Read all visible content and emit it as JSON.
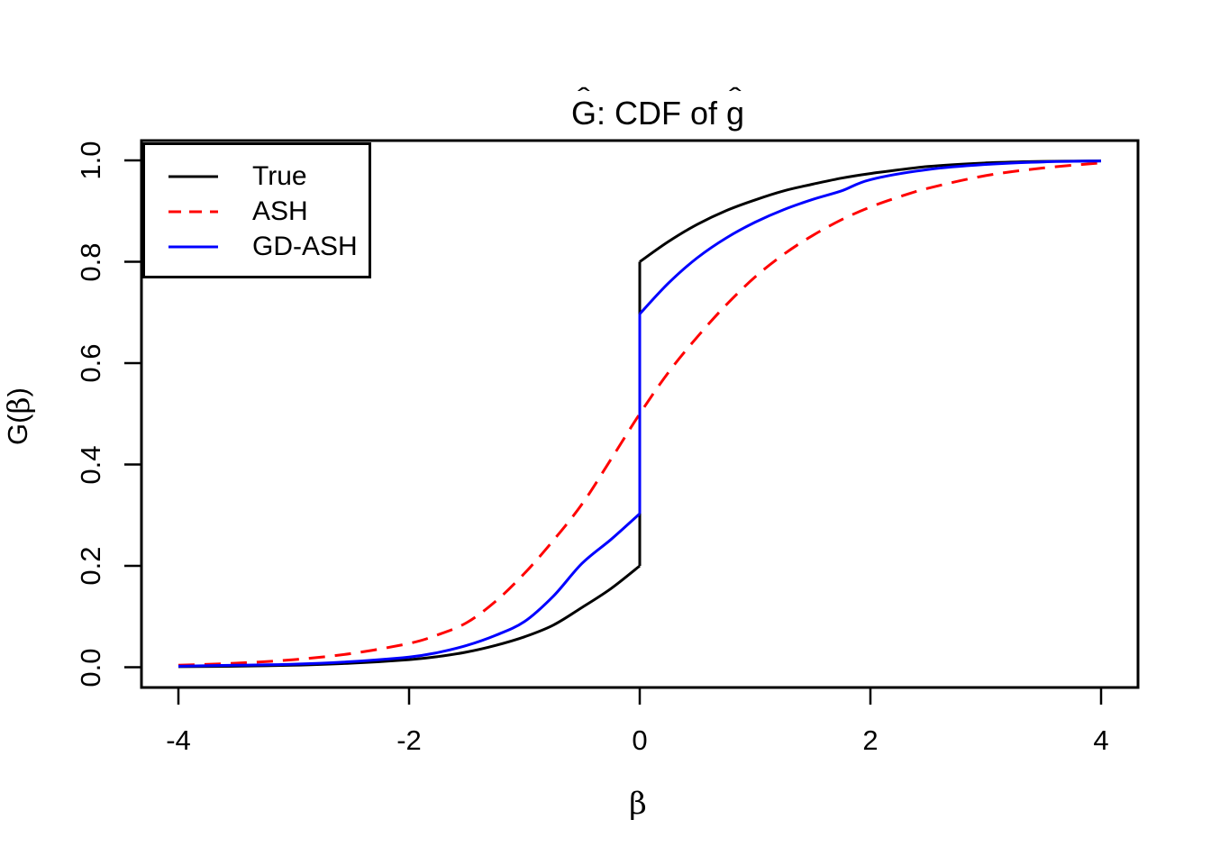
{
  "figure": {
    "title": {
      "text": "Ĝ: CDF of ĝ",
      "hat": "ˆ",
      "g_upper": "G",
      "mid": ": CDF of ",
      "g_lower": "g"
    },
    "x_axis": {
      "label": "β",
      "tick_labels": [
        "-4",
        "-2",
        "0",
        "2",
        "4"
      ],
      "tick_values": [
        -4,
        -2,
        0,
        2,
        4
      ]
    },
    "y_axis": {
      "label": "Ĝ(β)",
      "label_parts": {
        "hat": "ˆ",
        "g": "G",
        "open": "(",
        "beta": "β",
        "close": ")"
      },
      "tick_labels": [
        "0.0",
        "0.2",
        "0.4",
        "0.6",
        "0.8",
        "1.0"
      ],
      "tick_values": [
        0,
        0.2,
        0.4,
        0.6,
        0.8,
        1.0
      ]
    },
    "legend": {
      "entries": [
        {
          "label": "True",
          "color": "#000000",
          "linetype": "solid"
        },
        {
          "label": "ASH",
          "color": "#FF0000",
          "linetype": "dashed"
        },
        {
          "label": "GD-ASH",
          "color": "#0000FF",
          "linetype": "solid"
        }
      ]
    }
  },
  "chart_data": {
    "type": "line",
    "title": "Ĝ: CDF of ĝ",
    "xlabel": "β",
    "ylabel": "Ĝ(β)",
    "xlim": [
      -4,
      4
    ],
    "ylim": [
      0,
      1
    ],
    "grid": false,
    "legend_position": "topleft",
    "series": [
      {
        "name": "True",
        "color": "#000000",
        "linetype": "solid",
        "jump_at_zero": [
          0.2,
          0.8
        ],
        "x": [
          -4,
          -3.5,
          -3,
          -2.5,
          -2,
          -1.75,
          -1.5,
          -1.25,
          -1,
          -0.75,
          -0.5,
          -0.25,
          0,
          0,
          0.25,
          0.5,
          0.75,
          1,
          1.25,
          1.5,
          1.75,
          2,
          2.5,
          3,
          3.5,
          4
        ],
        "y": [
          0.001,
          0.002,
          0.004,
          0.008,
          0.015,
          0.021,
          0.03,
          0.043,
          0.06,
          0.083,
          0.118,
          0.155,
          0.2,
          0.8,
          0.84,
          0.874,
          0.901,
          0.922,
          0.94,
          0.953,
          0.965,
          0.974,
          0.988,
          0.995,
          0.998,
          0.999
        ]
      },
      {
        "name": "ASH",
        "color": "#FF0000",
        "linetype": "dashed",
        "jump_at_zero": null,
        "x": [
          -4,
          -3.5,
          -3,
          -2.5,
          -2,
          -1.75,
          -1.5,
          -1.25,
          -1,
          -0.75,
          -0.5,
          -0.25,
          0,
          0.25,
          0.5,
          0.75,
          1,
          1.25,
          1.5,
          1.75,
          2,
          2.25,
          2.5,
          3,
          3.5,
          4
        ],
        "y": [
          0.004,
          0.008,
          0.015,
          0.027,
          0.047,
          0.064,
          0.088,
          0.13,
          0.185,
          0.25,
          0.322,
          0.41,
          0.5,
          0.582,
          0.652,
          0.715,
          0.77,
          0.815,
          0.852,
          0.883,
          0.908,
          0.928,
          0.945,
          0.97,
          0.985,
          0.995
        ]
      },
      {
        "name": "GD-ASH",
        "color": "#0000FF",
        "linetype": "solid",
        "jump_at_zero": [
          0.303,
          0.697
        ],
        "x": [
          -4,
          -3.5,
          -3,
          -2.5,
          -2,
          -1.75,
          -1.5,
          -1.25,
          -1,
          -0.75,
          -0.5,
          -0.25,
          0,
          0,
          0.25,
          0.5,
          0.75,
          1,
          1.25,
          1.5,
          1.75,
          2,
          2.5,
          3,
          3.5,
          4
        ],
        "y": [
          0.002,
          0.004,
          0.006,
          0.011,
          0.02,
          0.029,
          0.043,
          0.063,
          0.09,
          0.14,
          0.205,
          0.252,
          0.303,
          0.697,
          0.758,
          0.808,
          0.847,
          0.878,
          0.903,
          0.923,
          0.94,
          0.962,
          0.982,
          0.992,
          0.997,
          0.999
        ]
      }
    ]
  }
}
